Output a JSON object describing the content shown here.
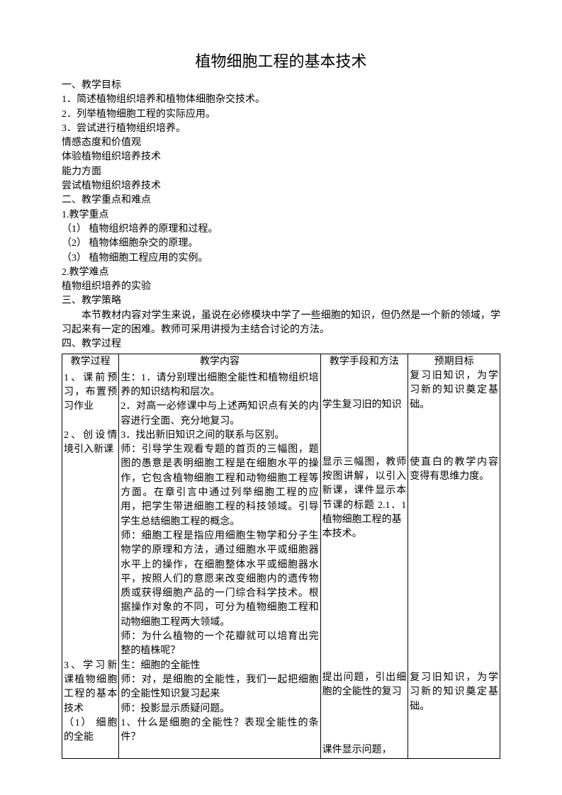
{
  "title": "植物细胞工程的基本技术",
  "sections": {
    "s1": {
      "header": "一、教学目标",
      "items": [
        "1．简述植物组织培养和植物体细胞杂交技术。",
        "2．列举植物细胞工程的实际应用。",
        "3．尝试进行植物组织培养。"
      ],
      "sub1": "情感态度和价值观",
      "sub1_content": "体验植物组织培养技术",
      "sub2": "能力方面",
      "sub2_content": "尝试植物组织培养技术"
    },
    "s2": {
      "header": "二、教学重点和难点",
      "sub1": "1.教学重点",
      "sub1_items": [
        "（1） 植物组织培养的原理和过程。",
        "（2） 植物体细胞杂交的原理。",
        "（3） 植物细胞工程应用的实例。"
      ],
      "sub2": "2.教学难点",
      "sub2_content": "植物组织培养的实验"
    },
    "s3": {
      "header": "三、教学策略",
      "content": "本节教材内容对学生来说，虽说在必修模块中学了一些细胞的知识，但仍然是一个新的领域，学习起来有一定的困难。教师可采用讲授为主结合讨论的方法。"
    },
    "s4": {
      "header": "四、教学过程"
    }
  },
  "table": {
    "headers": {
      "h1": "教学过程",
      "h2": "教学内容",
      "h3": "教学手段和方法",
      "h4": "预期目标"
    },
    "row1": {
      "c1": "1、课前预习，布置预习作业\n\n2、创设情境引入新课\n\n\n\n\n\n\n\n\n\n\n\n\n\n\n3、学习新课植物细胞工程的基本技术\n（1） 细胞的全能",
      "c2_p1": "生：1．请分别理出细胞全能性和植物组织培养的知识结构和层次。",
      "c2_p2": "2．对高一必修课中与上述两知识点有关的内容进行全面、充分地复习。",
      "c2_p3": "3．找出新旧知识之间的联系与区别。",
      "c2_p4": "师：引导学生观看专题的首页的三幅图，题图的愚意是表明细胞工程是在细胞水平的操作，它包含植物细胞工程和动物细胞工程等方面。在章引言中通过列举细胞工程的应用，把学生带进细胞工程的科技领域。引导学生总结细胞工程的概念。",
      "c2_p5": "师：细胞工程是指应用细胞生物学和分子生物学的原理和方法，通过细胞水平或细胞器水平上的操作，在细胞整体水平或细胞器水平，按照人们的意愿来改变细胞内的遗传物质或获得细胞产品的一门综合科学技术。根据操作对象的不同，可分为植物细胞工程和动物细胞工程两大领域。",
      "c2_p6": "师：为什么植物的一个花瓣就可以培育出完整的植株呢？",
      "c2_p7": "生：细胞的全能性",
      "c2_p8": "师：对，是细胞的全能性，我们一起把细胞的全能性知识复习起来",
      "c2_p9": "师：投影显示质疑问题。",
      "c2_p10": "1、什么是细胞的全能性？表现全能性的条件？",
      "c3_p1": "\n\n学生复习旧的知识\n\n\n\n显示三幅图，教师按图讲解，以引入新课，课件显示本节课的标题 2.1．1 植物细胞工程的基\n本技术。\n\n\n\n\n\n\n\n\n\n提出问题，引出细胞的全能性的复习\n\n\n\n课件显示问题，",
      "c4_p1": "复习旧知识，为学习新的知识奠定基础。\n\n\n\n使直白的教学内容变得有思维力度。\n\n\n\n\n\n\n\n\n\n\n\n\n\n复习旧知识，为学习新的知识奠定基础。"
    }
  }
}
